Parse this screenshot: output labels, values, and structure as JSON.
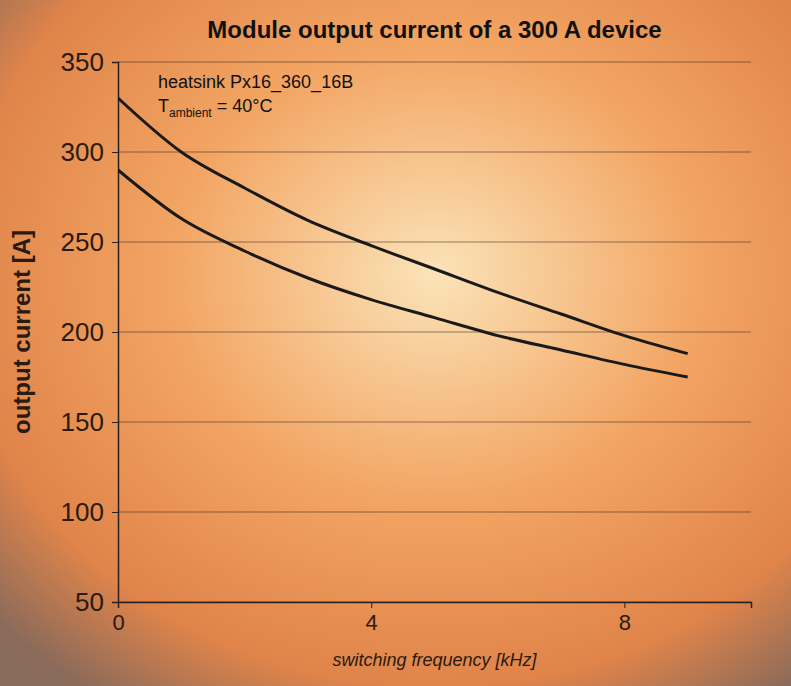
{
  "chart_data": {
    "type": "line",
    "title": "Module output current of a 300 A device",
    "annotations": [
      "heatsink Px16_360_16B",
      [
        "T",
        "ambient",
        " = 40°C"
      ]
    ],
    "x_label": "switching frequency [kHz]",
    "y_label": "output current [A]",
    "x": [
      0,
      1,
      2,
      3,
      4,
      5,
      6,
      7,
      8,
      9
    ],
    "series": [
      {
        "color": "#1a1a1a",
        "values": [
          330,
          300,
          280,
          262,
          248,
          235,
          222,
          210,
          198,
          188
        ]
      },
      {
        "color": "#1a1a1a",
        "values": [
          290,
          263,
          245,
          230,
          218,
          208,
          198,
          190,
          182,
          175
        ]
      }
    ],
    "xlim": [
      0,
      10
    ],
    "xticks": [
      0,
      4,
      8
    ],
    "ylim": [
      50,
      350
    ],
    "yticks": [
      50,
      100,
      150,
      200,
      250,
      300,
      350
    ],
    "grid": true
  }
}
